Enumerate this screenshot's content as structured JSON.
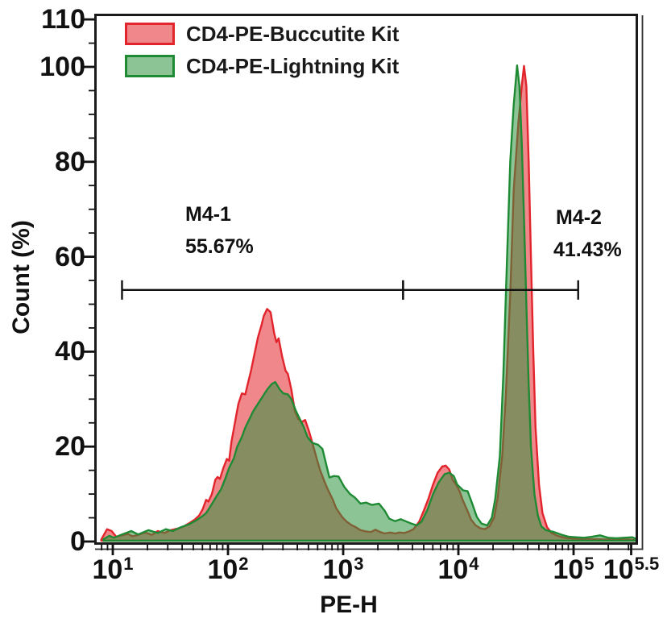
{
  "legend": {
    "items": [
      {
        "label": "CD4-PE-Buccutite Kit",
        "stroke": "#E2242C",
        "fill": "#EF868B"
      },
      {
        "label": "CD4-PE-Lightning Kit",
        "stroke": "#1F8A34",
        "fill": "#8DC496"
      }
    ]
  },
  "chart_data": {
    "type": "area",
    "subtype": "flow-cytometry-histogram-overlay",
    "title": "",
    "x_axis": {
      "label": "PE-H",
      "scale": "log10",
      "range_log": [
        0.86,
        5.55
      ],
      "ticks": [
        {
          "log": 1,
          "base": "10",
          "exp": "1"
        },
        {
          "log": 2,
          "base": "10",
          "exp": "2"
        },
        {
          "log": 3,
          "base": "10",
          "exp": "3"
        },
        {
          "log": 4,
          "base": "10",
          "exp": "4"
        },
        {
          "log": 5,
          "base": "10",
          "exp": "5"
        },
        {
          "log": 5.5,
          "base": "10",
          "exp": "5.5"
        }
      ]
    },
    "y_axis": {
      "label": "Count (%)",
      "range": [
        0,
        110.7
      ],
      "major_ticks": [
        0,
        20,
        40,
        60,
        80,
        100,
        110
      ],
      "minor_step": 5
    },
    "grid": false,
    "legend_position": "top-left-inside",
    "series": [
      {
        "name": "CD4-PE-Buccutite Kit",
        "stroke": "#E2242C",
        "fill": "#E2242C",
        "fill_opacity": 0.55,
        "points": [
          [
            0.9,
            0.4
          ],
          [
            0.95,
            2.6
          ],
          [
            0.99,
            2.2
          ],
          [
            1.03,
            1.0
          ],
          [
            1.08,
            1.3
          ],
          [
            1.13,
            1.6
          ],
          [
            1.17,
            1.1
          ],
          [
            1.22,
            1.4
          ],
          [
            1.28,
            1.9
          ],
          [
            1.34,
            1.4
          ],
          [
            1.39,
            2.2
          ],
          [
            1.45,
            1.8
          ],
          [
            1.5,
            2.4
          ],
          [
            1.56,
            2.7
          ],
          [
            1.61,
            3.1
          ],
          [
            1.66,
            3.8
          ],
          [
            1.71,
            4.6
          ],
          [
            1.75,
            5.5
          ],
          [
            1.78,
            6.8
          ],
          [
            1.81,
            8.8
          ],
          [
            1.83,
            8.4
          ],
          [
            1.86,
            10.0
          ],
          [
            1.89,
            13.0
          ],
          [
            1.91,
            13.6
          ],
          [
            1.93,
            13.2
          ],
          [
            1.96,
            15.5
          ],
          [
            1.99,
            17.4
          ],
          [
            2.01,
            17.0
          ],
          [
            2.03,
            21.0
          ],
          [
            2.06,
            25.0
          ],
          [
            2.09,
            29.0
          ],
          [
            2.12,
            31.2
          ],
          [
            2.15,
            31.0
          ],
          [
            2.17,
            33.0
          ],
          [
            2.2,
            36.0
          ],
          [
            2.23,
            39.5
          ],
          [
            2.26,
            43.0
          ],
          [
            2.29,
            45.5
          ],
          [
            2.31,
            47.5
          ],
          [
            2.34,
            49.0
          ],
          [
            2.37,
            48.3
          ],
          [
            2.4,
            44.0
          ],
          [
            2.42,
            42.0
          ],
          [
            2.44,
            42.8
          ],
          [
            2.47,
            39.0
          ],
          [
            2.5,
            36.0
          ],
          [
            2.52,
            35.3
          ],
          [
            2.55,
            32.0
          ],
          [
            2.58,
            27.5
          ],
          [
            2.61,
            25.8
          ],
          [
            2.64,
            25.2
          ],
          [
            2.67,
            25.6
          ],
          [
            2.7,
            23.5
          ],
          [
            2.73,
            21.0
          ],
          [
            2.77,
            17.5
          ],
          [
            2.8,
            15.0
          ],
          [
            2.84,
            12.5
          ],
          [
            2.87,
            10.8
          ],
          [
            2.91,
            8.8
          ],
          [
            2.94,
            7.0
          ],
          [
            2.99,
            5.2
          ],
          [
            3.03,
            4.2
          ],
          [
            3.07,
            3.5
          ],
          [
            3.11,
            3.0
          ],
          [
            3.15,
            2.4
          ],
          [
            3.2,
            2.1
          ],
          [
            3.24,
            2.0
          ],
          [
            3.28,
            2.5
          ],
          [
            3.32,
            2.0
          ],
          [
            3.36,
            1.7
          ],
          [
            3.41,
            1.9
          ],
          [
            3.45,
            1.7
          ],
          [
            3.49,
            1.9
          ],
          [
            3.53,
            1.8
          ],
          [
            3.57,
            2.1
          ],
          [
            3.61,
            2.6
          ],
          [
            3.66,
            4.2
          ],
          [
            3.7,
            6.5
          ],
          [
            3.74,
            9.0
          ],
          [
            3.78,
            12.0
          ],
          [
            3.82,
            14.5
          ],
          [
            3.86,
            15.8
          ],
          [
            3.89,
            16.0
          ],
          [
            3.92,
            15.2
          ],
          [
            3.95,
            13.0
          ],
          [
            3.98,
            12.0
          ],
          [
            4.01,
            10.6
          ],
          [
            4.04,
            8.6
          ],
          [
            4.08,
            6.4
          ],
          [
            4.11,
            4.6
          ],
          [
            4.15,
            3.4
          ],
          [
            4.19,
            2.8
          ],
          [
            4.23,
            2.6
          ],
          [
            4.27,
            3.2
          ],
          [
            4.31,
            5.0
          ],
          [
            4.34,
            9.0
          ],
          [
            4.38,
            18.0
          ],
          [
            4.41,
            30.0
          ],
          [
            4.45,
            52.0
          ],
          [
            4.48,
            74.0
          ],
          [
            4.52,
            88.0
          ],
          [
            4.55,
            96.0
          ],
          [
            4.57,
            100.2
          ],
          [
            4.59,
            96.0
          ],
          [
            4.61,
            80.0
          ],
          [
            4.63,
            60.0
          ],
          [
            4.65,
            40.0
          ],
          [
            4.67,
            24.0
          ],
          [
            4.7,
            12.0
          ],
          [
            4.73,
            6.0
          ],
          [
            4.77,
            3.0
          ],
          [
            4.81,
            1.8
          ],
          [
            4.86,
            1.2
          ],
          [
            4.92,
            0.8
          ],
          [
            5.01,
            0.6
          ],
          [
            5.1,
            0.5
          ],
          [
            5.2,
            0.5
          ],
          [
            5.3,
            0.4
          ],
          [
            5.41,
            0.5
          ],
          [
            5.49,
            0.4
          ],
          [
            5.54,
            0.3
          ]
        ]
      },
      {
        "name": "CD4-PE-Lightning Kit",
        "stroke": "#1F8A34",
        "fill": "#2F9440",
        "fill_opacity": 0.55,
        "points": [
          [
            0.92,
            0.5
          ],
          [
            0.97,
            1.2
          ],
          [
            1.01,
            0.8
          ],
          [
            1.08,
            1.5
          ],
          [
            1.16,
            2.2
          ],
          [
            1.22,
            1.5
          ],
          [
            1.31,
            2.4
          ],
          [
            1.39,
            1.8
          ],
          [
            1.46,
            2.6
          ],
          [
            1.52,
            2.2
          ],
          [
            1.59,
            3.0
          ],
          [
            1.66,
            3.6
          ],
          [
            1.72,
            4.4
          ],
          [
            1.77,
            5.2
          ],
          [
            1.81,
            6.0
          ],
          [
            1.85,
            7.5
          ],
          [
            1.9,
            9.5
          ],
          [
            1.94,
            11.0
          ],
          [
            1.98,
            13.5
          ],
          [
            2.01,
            15.5
          ],
          [
            2.05,
            17.5
          ],
          [
            2.08,
            20.0
          ],
          [
            2.12,
            22.0
          ],
          [
            2.15,
            24.0
          ],
          [
            2.19,
            26.0
          ],
          [
            2.22,
            27.5
          ],
          [
            2.26,
            29.0
          ],
          [
            2.3,
            30.5
          ],
          [
            2.34,
            32.0
          ],
          [
            2.38,
            33.2
          ],
          [
            2.41,
            33.6
          ],
          [
            2.45,
            32.0
          ],
          [
            2.48,
            31.2
          ],
          [
            2.52,
            31.0
          ],
          [
            2.55,
            30.0
          ],
          [
            2.59,
            27.5
          ],
          [
            2.62,
            26.0
          ],
          [
            2.66,
            24.0
          ],
          [
            2.69,
            22.0
          ],
          [
            2.73,
            20.8
          ],
          [
            2.78,
            20.4
          ],
          [
            2.82,
            19.5
          ],
          [
            2.85,
            16.5
          ],
          [
            2.88,
            13.5
          ],
          [
            2.92,
            13.8
          ],
          [
            2.96,
            13.7
          ],
          [
            3.01,
            11.5
          ],
          [
            3.06,
            10.0
          ],
          [
            3.1,
            9.3
          ],
          [
            3.15,
            8.0
          ],
          [
            3.2,
            8.2
          ],
          [
            3.25,
            7.7
          ],
          [
            3.31,
            8.0
          ],
          [
            3.36,
            6.5
          ],
          [
            3.4,
            4.8
          ],
          [
            3.45,
            4.3
          ],
          [
            3.5,
            4.7
          ],
          [
            3.55,
            4.2
          ],
          [
            3.59,
            3.8
          ],
          [
            3.64,
            3.4
          ],
          [
            3.68,
            4.2
          ],
          [
            3.73,
            6.6
          ],
          [
            3.78,
            10.0
          ],
          [
            3.83,
            12.5
          ],
          [
            3.88,
            14.2
          ],
          [
            3.92,
            14.5
          ],
          [
            3.96,
            13.8
          ],
          [
            3.99,
            12.0
          ],
          [
            4.04,
            10.8
          ],
          [
            4.08,
            10.6
          ],
          [
            4.12,
            8.0
          ],
          [
            4.16,
            5.2
          ],
          [
            4.2,
            3.8
          ],
          [
            4.25,
            3.4
          ],
          [
            4.29,
            5.0
          ],
          [
            4.32,
            9.0
          ],
          [
            4.36,
            18.0
          ],
          [
            4.39,
            35.0
          ],
          [
            4.42,
            58.0
          ],
          [
            4.45,
            80.0
          ],
          [
            4.48,
            92.0
          ],
          [
            4.51,
            100.3
          ],
          [
            4.53,
            96.0
          ],
          [
            4.55,
            84.0
          ],
          [
            4.57,
            68.0
          ],
          [
            4.59,
            50.0
          ],
          [
            4.61,
            33.0
          ],
          [
            4.63,
            20.0
          ],
          [
            4.66,
            10.0
          ],
          [
            4.69,
            5.5
          ],
          [
            4.72,
            3.2
          ],
          [
            4.76,
            2.4
          ],
          [
            4.83,
            2.0
          ],
          [
            4.9,
            1.4
          ],
          [
            4.96,
            1.0
          ],
          [
            5.02,
            0.9
          ],
          [
            5.09,
            0.8
          ],
          [
            5.16,
            1.0
          ],
          [
            5.23,
            1.3
          ],
          [
            5.3,
            0.8
          ],
          [
            5.37,
            0.7
          ],
          [
            5.44,
            0.8
          ],
          [
            5.51,
            0.9
          ],
          [
            5.54,
            0.6
          ]
        ]
      }
    ],
    "markers": [
      {
        "name": "M4-1",
        "percent": "55.67%",
        "from_log": 1.08,
        "to_log": 3.52,
        "y_percent": 53
      },
      {
        "name": "M4-2",
        "percent": "41.43%",
        "from_log": 3.52,
        "to_log": 5.04,
        "y_percent": 53
      }
    ]
  }
}
